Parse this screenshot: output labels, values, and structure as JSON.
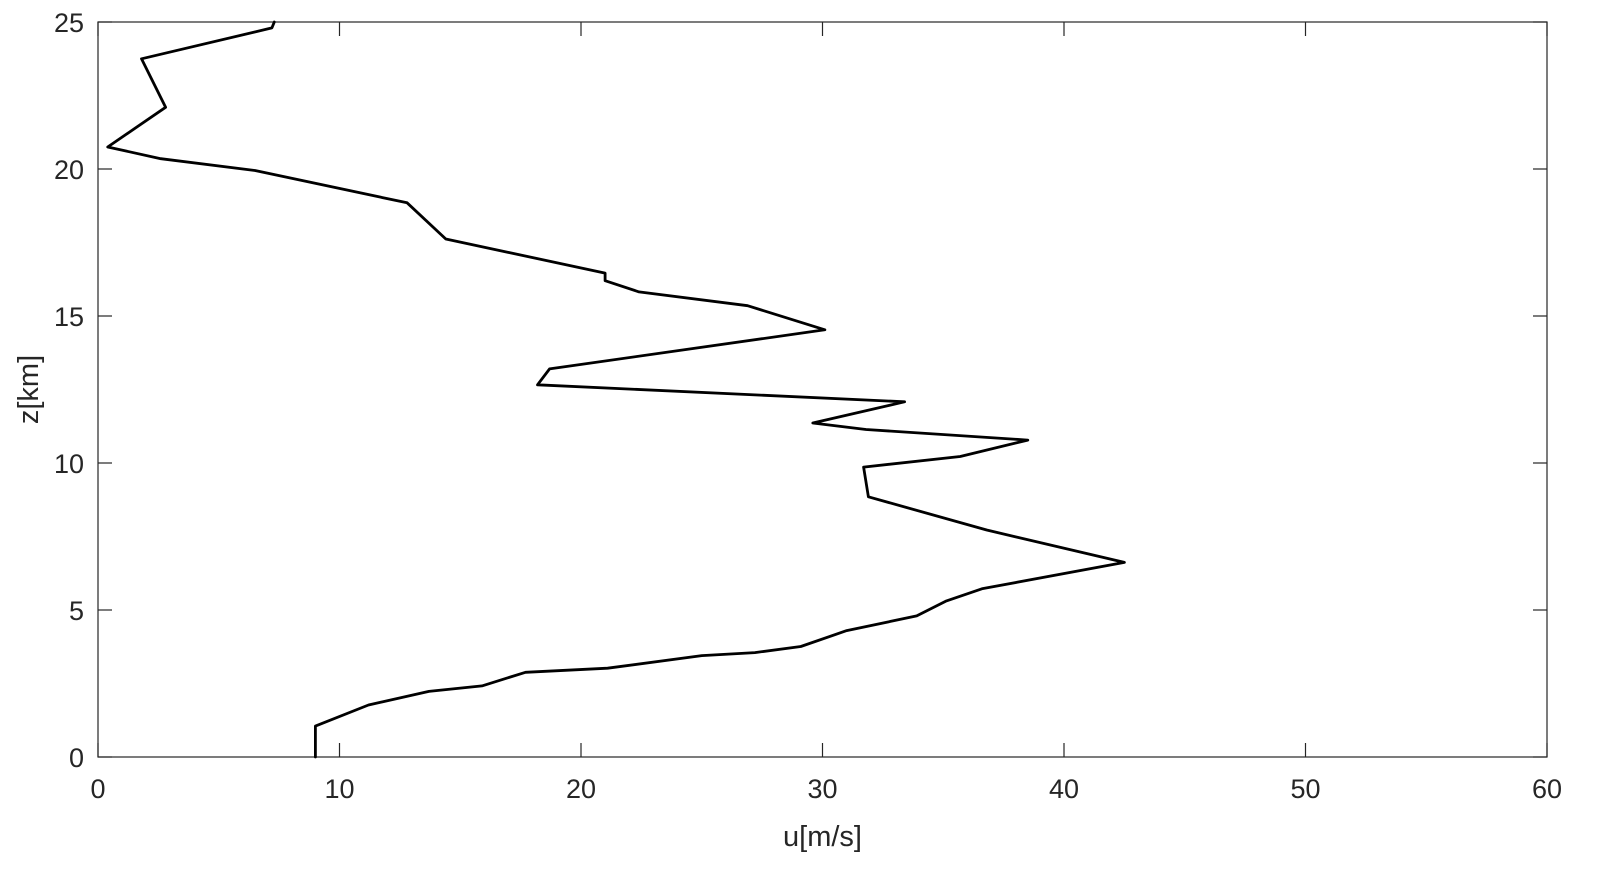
{
  "chart_data": {
    "type": "line",
    "title": "",
    "xlabel": "u[m/s]",
    "ylabel": "z[km]",
    "xlim": [
      0,
      60
    ],
    "ylim": [
      0,
      25
    ],
    "grid": false,
    "x_ticks": [
      0,
      10,
      20,
      30,
      40,
      50,
      60
    ],
    "y_ticks": [
      0,
      5,
      10,
      15,
      20,
      25
    ],
    "x_tick_labels": [
      "0",
      "10",
      "20",
      "30",
      "40",
      "50",
      "60"
    ],
    "y_tick_labels": [
      "0",
      "5",
      "10",
      "15",
      "20",
      "25"
    ],
    "line_color": "#000000",
    "series": [
      {
        "x": [
          9.0,
          9.0,
          11.2,
          13.7,
          15.9,
          17.7,
          21.1,
          25.0,
          27.2,
          29.1,
          31.0,
          33.9,
          35.1,
          36.6,
          42.5,
          36.8,
          31.9,
          31.7,
          35.7,
          38.5,
          31.8,
          29.6,
          33.4,
          18.2,
          18.7,
          30.1,
          26.9,
          22.4,
          21.0,
          21.0,
          14.4,
          12.8,
          6.5,
          2.6,
          0.4,
          2.8,
          1.8,
          7.2,
          7.3
        ],
        "y": [
          0,
          1.05,
          1.77,
          2.23,
          2.42,
          2.88,
          3.02,
          3.45,
          3.55,
          3.76,
          4.3,
          4.8,
          5.3,
          5.72,
          6.62,
          7.72,
          8.85,
          9.86,
          10.22,
          10.78,
          11.14,
          11.36,
          12.08,
          12.66,
          13.2,
          14.53,
          15.35,
          15.82,
          16.2,
          16.46,
          17.62,
          18.85,
          19.95,
          20.35,
          20.75,
          22.1,
          23.75,
          24.8,
          25.0
        ]
      }
    ]
  }
}
